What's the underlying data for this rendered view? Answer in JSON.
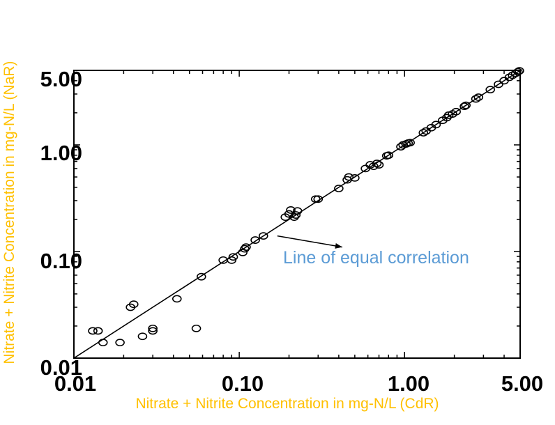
{
  "chart_data": {
    "type": "scatter",
    "title": "",
    "xlabel": "Nitrate + Nitrite Concentration in mg-N/L (CdR)",
    "ylabel": "Nitrate + Nitrite Concentration in mg-N/L (NaR)",
    "xscale": "log",
    "yscale": "log",
    "xlim": [
      0.01,
      5.0
    ],
    "ylim": [
      0.01,
      5.0
    ],
    "xticks": [
      0.01,
      0.1,
      1.0,
      5.0
    ],
    "xtick_labels": [
      "0.01",
      "0.10",
      "1.00",
      "5.00"
    ],
    "yticks": [
      0.01,
      0.1,
      1.0,
      5.0
    ],
    "ytick_labels": [
      "0.01",
      "0.10",
      "1.00",
      "5.00"
    ],
    "grid": false,
    "axis_title_color": "#FFC000",
    "annotation_color": "#5B9BD5",
    "reference_line": {
      "from": [
        0.01,
        0.01
      ],
      "to": [
        5.0,
        5.0
      ]
    },
    "annotation": {
      "text": "Line of equal correlation",
      "arrow_tail": [
        0.17,
        0.14
      ],
      "arrow_head": [
        0.42,
        0.11
      ]
    },
    "points": [
      {
        "x": 0.013,
        "y": 0.018
      },
      {
        "x": 0.014,
        "y": 0.018
      },
      {
        "x": 0.015,
        "y": 0.014
      },
      {
        "x": 0.019,
        "y": 0.014
      },
      {
        "x": 0.022,
        "y": 0.03
      },
      {
        "x": 0.023,
        "y": 0.032
      },
      {
        "x": 0.026,
        "y": 0.016
      },
      {
        "x": 0.03,
        "y": 0.018
      },
      {
        "x": 0.03,
        "y": 0.019
      },
      {
        "x": 0.042,
        "y": 0.036
      },
      {
        "x": 0.055,
        "y": 0.019
      },
      {
        "x": 0.059,
        "y": 0.058
      },
      {
        "x": 0.08,
        "y": 0.083
      },
      {
        "x": 0.09,
        "y": 0.083
      },
      {
        "x": 0.092,
        "y": 0.089
      },
      {
        "x": 0.105,
        "y": 0.098
      },
      {
        "x": 0.108,
        "y": 0.106
      },
      {
        "x": 0.11,
        "y": 0.11
      },
      {
        "x": 0.125,
        "y": 0.128
      },
      {
        "x": 0.14,
        "y": 0.14
      },
      {
        "x": 0.19,
        "y": 0.21
      },
      {
        "x": 0.2,
        "y": 0.225
      },
      {
        "x": 0.205,
        "y": 0.245
      },
      {
        "x": 0.215,
        "y": 0.21
      },
      {
        "x": 0.22,
        "y": 0.22
      },
      {
        "x": 0.225,
        "y": 0.24
      },
      {
        "x": 0.29,
        "y": 0.31
      },
      {
        "x": 0.3,
        "y": 0.31
      },
      {
        "x": 0.4,
        "y": 0.39
      },
      {
        "x": 0.45,
        "y": 0.47
      },
      {
        "x": 0.46,
        "y": 0.5
      },
      {
        "x": 0.5,
        "y": 0.49
      },
      {
        "x": 0.58,
        "y": 0.6
      },
      {
        "x": 0.62,
        "y": 0.65
      },
      {
        "x": 0.65,
        "y": 0.63
      },
      {
        "x": 0.68,
        "y": 0.67
      },
      {
        "x": 0.7,
        "y": 0.65
      },
      {
        "x": 0.78,
        "y": 0.79
      },
      {
        "x": 0.8,
        "y": 0.8
      },
      {
        "x": 0.95,
        "y": 0.96
      },
      {
        "x": 0.98,
        "y": 1.0
      },
      {
        "x": 1.02,
        "y": 1.02
      },
      {
        "x": 1.05,
        "y": 1.04
      },
      {
        "x": 1.08,
        "y": 1.05
      },
      {
        "x": 1.3,
        "y": 1.3
      },
      {
        "x": 1.35,
        "y": 1.35
      },
      {
        "x": 1.45,
        "y": 1.45
      },
      {
        "x": 1.55,
        "y": 1.55
      },
      {
        "x": 1.7,
        "y": 1.7
      },
      {
        "x": 1.8,
        "y": 1.8
      },
      {
        "x": 1.85,
        "y": 1.9
      },
      {
        "x": 1.95,
        "y": 1.95
      },
      {
        "x": 2.05,
        "y": 2.05
      },
      {
        "x": 2.3,
        "y": 2.3
      },
      {
        "x": 2.35,
        "y": 2.35
      },
      {
        "x": 2.7,
        "y": 2.7
      },
      {
        "x": 2.8,
        "y": 2.8
      },
      {
        "x": 3.3,
        "y": 3.3
      },
      {
        "x": 3.7,
        "y": 3.7
      },
      {
        "x": 4.0,
        "y": 4.0
      },
      {
        "x": 4.3,
        "y": 4.3
      },
      {
        "x": 4.5,
        "y": 4.5
      },
      {
        "x": 4.7,
        "y": 4.7
      },
      {
        "x": 4.85,
        "y": 4.85
      },
      {
        "x": 4.95,
        "y": 4.95
      }
    ]
  }
}
